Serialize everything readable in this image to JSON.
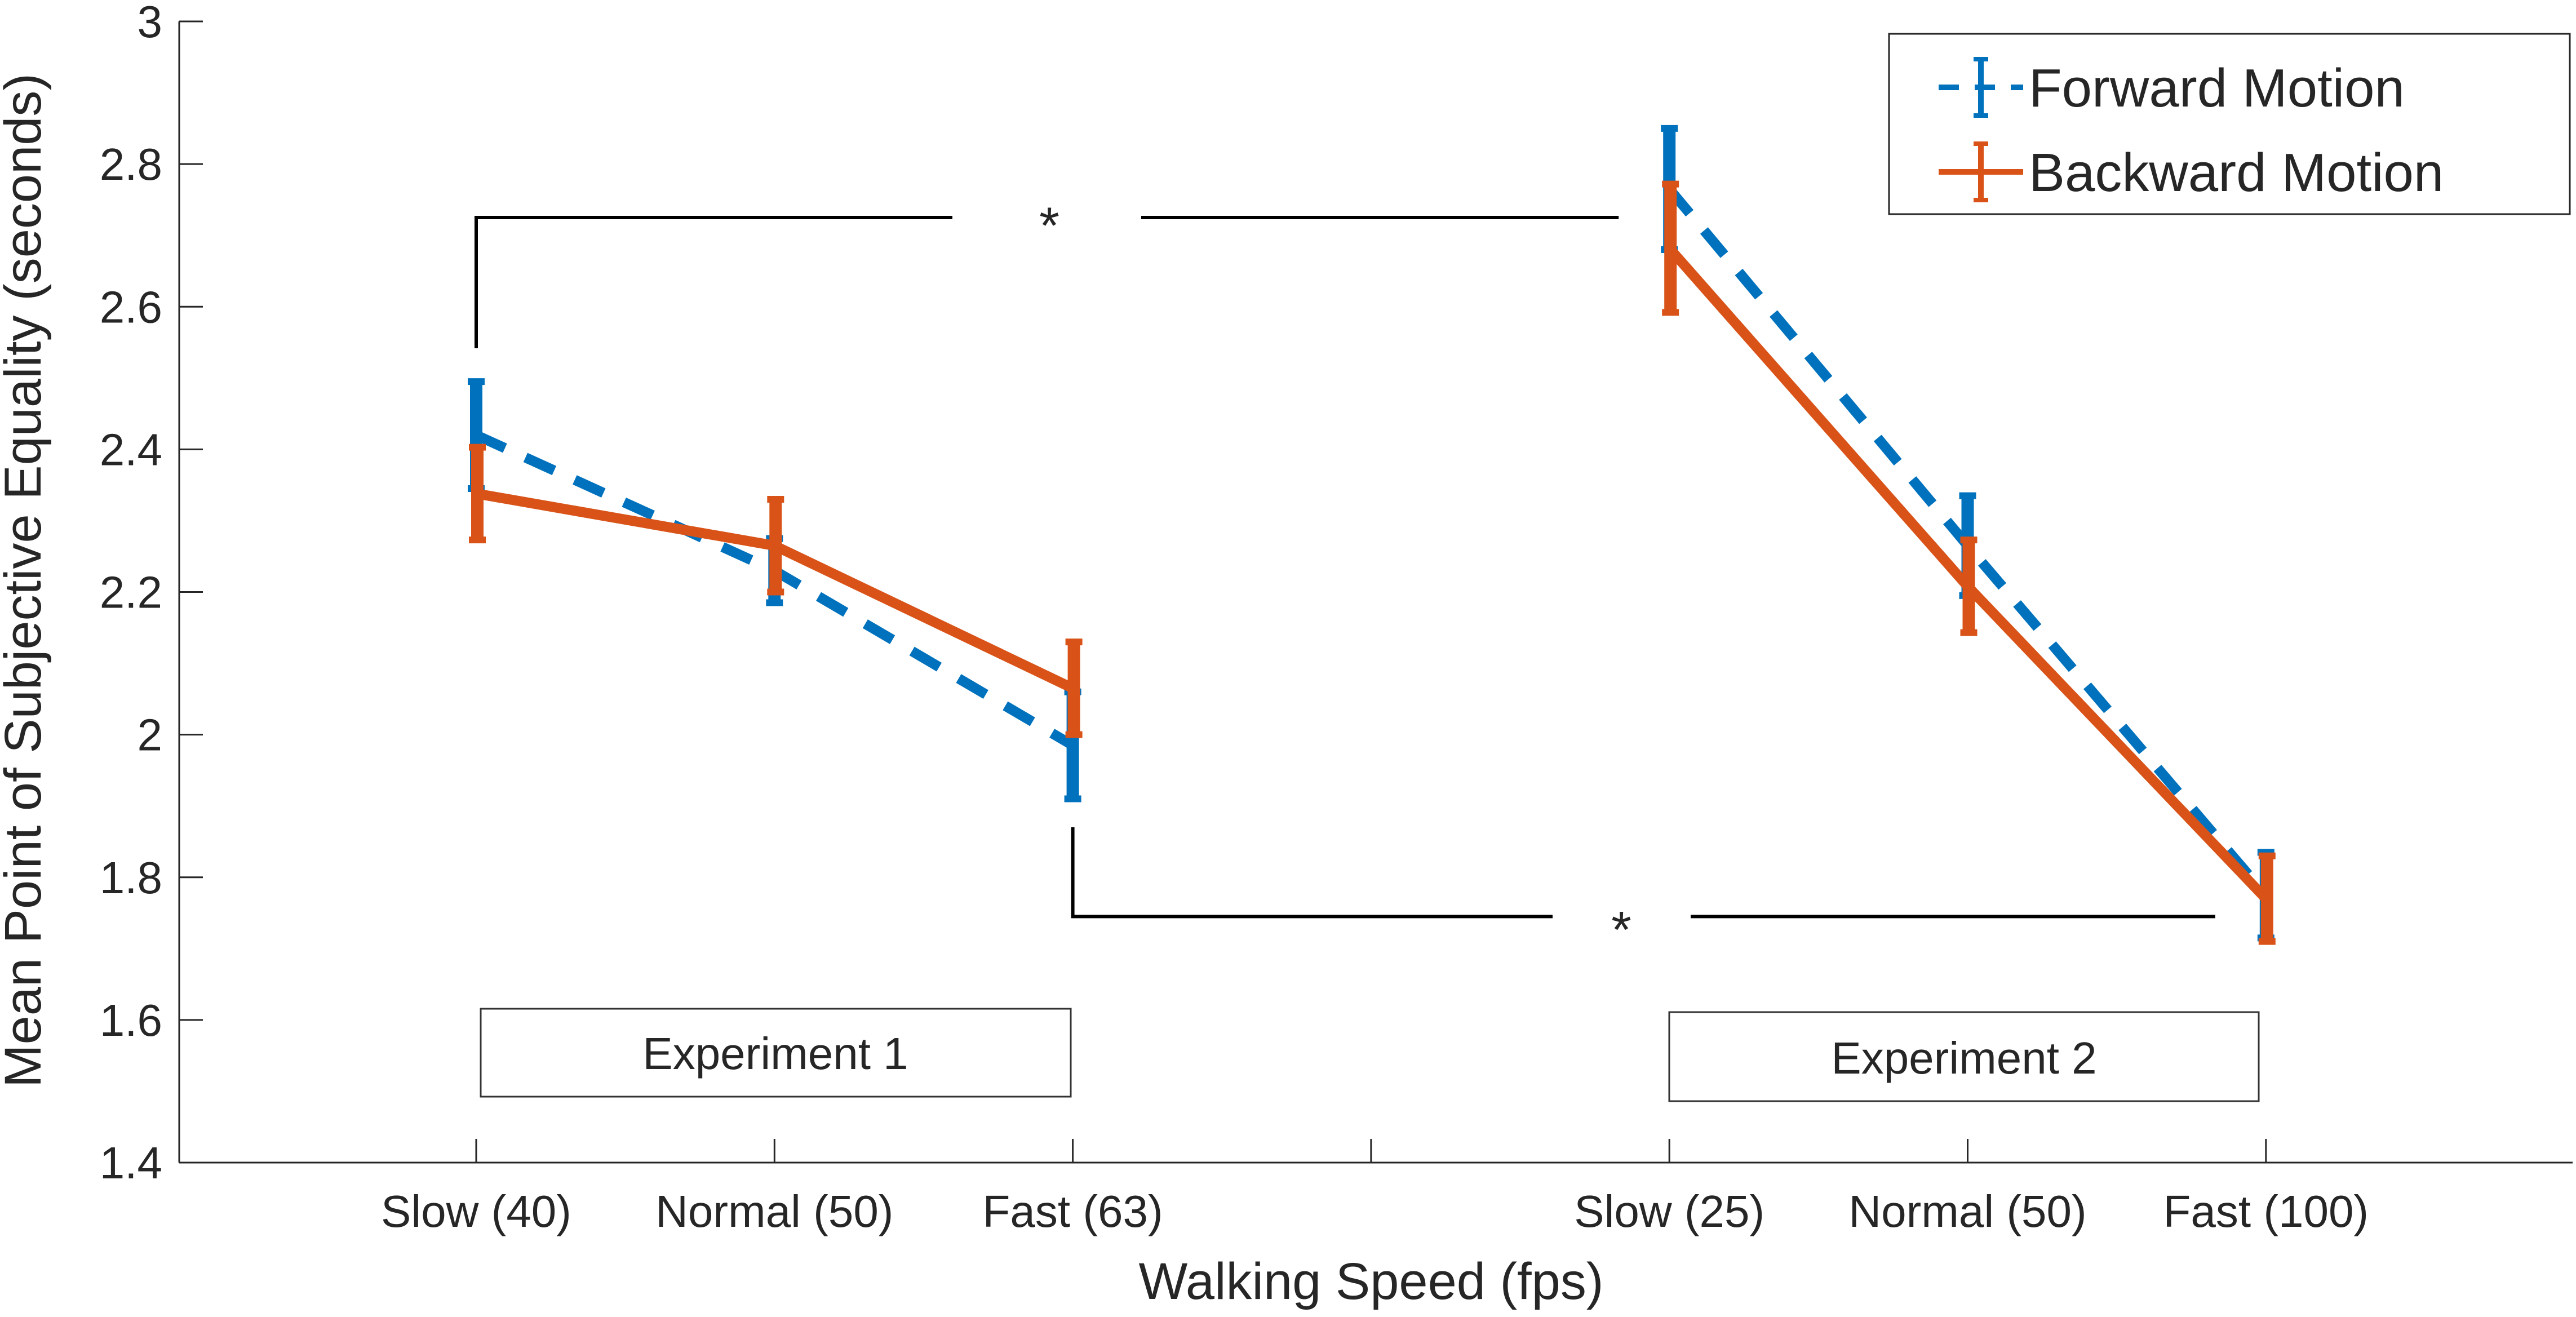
{
  "chart_data": {
    "type": "line",
    "xlabel": "Walking Speed (fps)",
    "ylabel": "Mean Point of Subjective Equality (seconds)",
    "ylim": [
      1.4,
      3.0
    ],
    "yticks": [
      "1.4",
      "1.6",
      "1.8",
      "2",
      "2.2",
      "2.4",
      "2.6",
      "2.8",
      "3"
    ],
    "grid": false,
    "legend_position": "top-right",
    "categories": [
      "Slow (40)",
      "Normal (50)",
      "Fast (63)",
      "",
      "Slow (25)",
      "Normal (50)",
      "Fast (100)"
    ],
    "series": [
      {
        "name": "Forward Motion",
        "color": "#0072BD",
        "style": "dashed",
        "segments": [
          {
            "x": [
              0,
              1,
              2
            ],
            "y": [
              2.42,
              2.23,
              1.985
            ],
            "err": [
              0.075,
              0.045,
              0.075
            ]
          },
          {
            "x": [
              4,
              5,
              6
            ],
            "y": [
              2.765,
              2.265,
              1.775
            ],
            "err": [
              0.085,
              0.07,
              0.06
            ]
          }
        ]
      },
      {
        "name": "Backward Motion",
        "color": "#D95319",
        "style": "solid",
        "segments": [
          {
            "x": [
              0,
              1,
              2
            ],
            "y": [
              2.338,
              2.265,
              2.065
            ],
            "err": [
              0.065,
              0.065,
              0.065
            ]
          },
          {
            "x": [
              4,
              5,
              6
            ],
            "y": [
              2.682,
              2.208,
              1.77
            ],
            "err": [
              0.09,
              0.065,
              0.06
            ]
          }
        ]
      }
    ],
    "annotations": [
      {
        "text": "Experiment 1"
      },
      {
        "text": "Experiment 2"
      }
    ],
    "significance": [
      {
        "label": "*",
        "from": 0,
        "to": 4,
        "y": 2.725
      },
      {
        "label": "*",
        "from": 2,
        "to": 6,
        "y": 1.745
      }
    ]
  }
}
